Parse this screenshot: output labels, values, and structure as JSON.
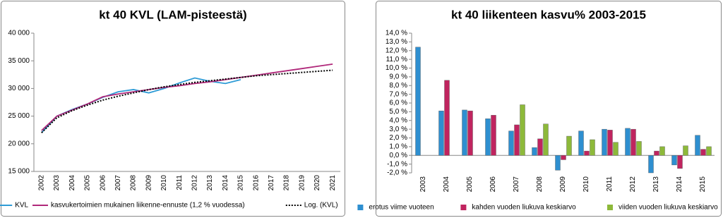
{
  "chart_data": [
    {
      "type": "line",
      "title": "kt 40 KVL (LAM-pisteestä)",
      "categories": [
        "2002",
        "2003",
        "2004",
        "2005",
        "2006",
        "2007",
        "2008",
        "2009",
        "2010",
        "2011",
        "2012",
        "2013",
        "2014",
        "2015",
        "2016",
        "2017",
        "2018",
        "2019",
        "2020",
        "2021"
      ],
      "series": [
        {
          "name": "KVL",
          "color": "#2e9bd6",
          "values": [
            22000,
            25000,
            26200,
            27200,
            28400,
            29400,
            29800,
            29200,
            30000,
            31000,
            31900,
            31300,
            30900,
            31600,
            null,
            null,
            null,
            null,
            null,
            null
          ]
        },
        {
          "name": "kasvukertoimien mukainen liikenne-ennuste (1,2 % vuodessa)",
          "color": "#b0287a",
          "values": [
            22400,
            25000,
            26100,
            27200,
            28500,
            29000,
            29400,
            29800,
            30200,
            30500,
            30900,
            31200,
            31600,
            32000,
            32400,
            32800,
            33200,
            33600,
            34000,
            34400
          ]
        },
        {
          "name": "Log. (KVL)",
          "color": "#000000",
          "dash": "dotted",
          "values": [
            22000,
            24700,
            26000,
            27000,
            27900,
            28600,
            29200,
            29800,
            30300,
            30700,
            31100,
            31400,
            31700,
            32000,
            32300,
            32500,
            32700,
            32900,
            33100,
            33300
          ]
        }
      ],
      "ylim": [
        15000,
        40000
      ],
      "yticks": [
        {
          "value": 15000,
          "label": "15 000"
        },
        {
          "value": 20000,
          "label": "20 000"
        },
        {
          "value": 25000,
          "label": "25 000"
        },
        {
          "value": 30000,
          "label": "30 000"
        },
        {
          "value": 35000,
          "label": "35 000"
        },
        {
          "value": 40000,
          "label": "40 000"
        }
      ]
    },
    {
      "type": "bar",
      "title": "kt 40 liikenteen kasvu% 2003-2015",
      "categories": [
        "2003",
        "2004",
        "2005",
        "2006",
        "2007",
        "2008",
        "2009",
        "2010",
        "2011",
        "2012",
        "2013",
        "2014",
        "2015"
      ],
      "series": [
        {
          "name": "erotus viime vuoteen",
          "color": "#2e8fd0",
          "values": [
            12.4,
            5.1,
            5.2,
            4.2,
            2.8,
            0.9,
            -1.7,
            2.8,
            3.0,
            3.1,
            -2.0,
            -1.1,
            2.3
          ]
        },
        {
          "name": "kahden vuoden liukuva keskiarvo",
          "color": "#c0245f",
          "values": [
            null,
            8.6,
            5.1,
            4.6,
            3.5,
            1.9,
            -0.5,
            0.5,
            2.9,
            3.0,
            0.5,
            -1.5,
            0.7
          ]
        },
        {
          "name": "viiden vuoden liukuva keskiarvo",
          "color": "#8db93a",
          "values": [
            null,
            null,
            null,
            null,
            5.8,
            3.6,
            2.2,
            1.8,
            1.5,
            1.6,
            1.0,
            1.1,
            1.0
          ]
        }
      ],
      "ylim": [
        -2,
        14
      ],
      "yticks": [
        {
          "value": -2,
          "label": "-2,0 %"
        },
        {
          "value": -1,
          "label": "-1,0 %"
        },
        {
          "value": 0,
          "label": "0,0 %"
        },
        {
          "value": 1,
          "label": "1,0 %"
        },
        {
          "value": 2,
          "label": "2,0 %"
        },
        {
          "value": 3,
          "label": "3,0 %"
        },
        {
          "value": 4,
          "label": "4,0 %"
        },
        {
          "value": 5,
          "label": "5,0 %"
        },
        {
          "value": 6,
          "label": "6,0 %"
        },
        {
          "value": 7,
          "label": "7,0 %"
        },
        {
          "value": 8,
          "label": "8,0 %"
        },
        {
          "value": 9,
          "label": "9,0 %"
        },
        {
          "value": 10,
          "label": "10,0 %"
        },
        {
          "value": 11,
          "label": "11,0 %"
        },
        {
          "value": 12,
          "label": "12,0 %"
        },
        {
          "value": 13,
          "label": "13,0 %"
        },
        {
          "value": 14,
          "label": "14,0 %"
        }
      ]
    }
  ]
}
